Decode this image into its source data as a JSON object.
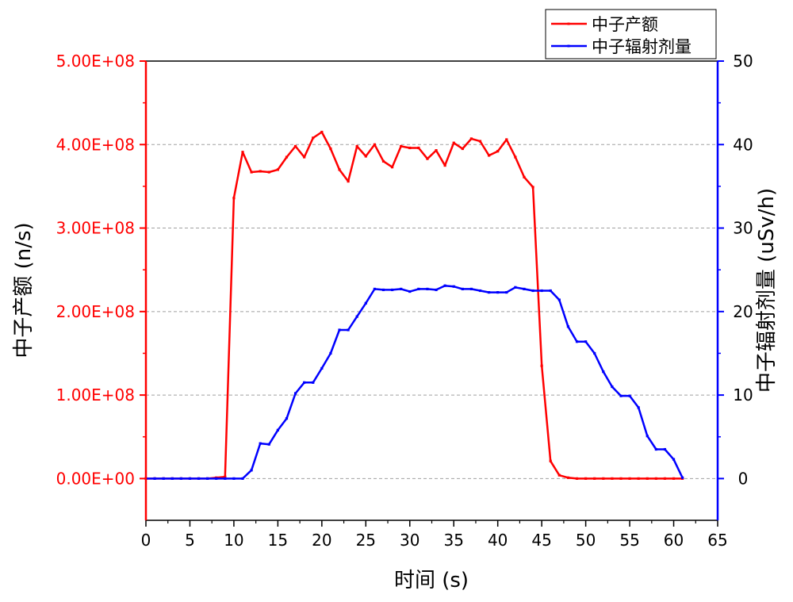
{
  "colors": {
    "left": "#ff0000",
    "right": "#0000ff",
    "axis": "#000000",
    "grid": "#a0a0a0"
  },
  "chart_data": {
    "type": "line",
    "xlabel": "时间 (s)",
    "ylabel_left": "中子产额 (n/s)",
    "ylabel_right": "中子辐射剂量 (uSv/h)",
    "xlim": [
      0,
      65
    ],
    "ylim_left": [
      -50000000,
      500000000
    ],
    "ylim_right": [
      -5,
      50
    ],
    "x_ticks": [
      "0",
      "5",
      "10",
      "15",
      "20",
      "25",
      "30",
      "35",
      "40",
      "45",
      "50",
      "55",
      "60",
      "65"
    ],
    "y_left_ticks": [
      "0.00E+00",
      "1.00E+08",
      "2.00E+08",
      "3.00E+08",
      "4.00E+08",
      "5.00E+08"
    ],
    "y_right_ticks": [
      "0",
      "10",
      "20",
      "30",
      "40",
      "50"
    ],
    "grid": "horizontal dashed",
    "legend_position": "top-right, outside plot",
    "series": [
      {
        "name": "中子产额",
        "axis": "left",
        "color": "#ff0000",
        "x": [
          0,
          1,
          2,
          3,
          4,
          5,
          6,
          7,
          8,
          9,
          10,
          11,
          12,
          13,
          14,
          15,
          16,
          17,
          18,
          19,
          20,
          21,
          22,
          23,
          24,
          25,
          26,
          27,
          28,
          29,
          30,
          31,
          32,
          33,
          34,
          35,
          36,
          37,
          38,
          39,
          40,
          41,
          42,
          43,
          44,
          45,
          46,
          47,
          48,
          49,
          50,
          51,
          52,
          53,
          54,
          55,
          56,
          57,
          58,
          59,
          60,
          61
        ],
        "values": [
          0,
          0,
          0,
          0,
          0,
          0,
          0,
          0,
          1000000,
          2000000,
          336000000,
          391000000,
          367000000,
          368000000,
          367000000,
          370000000,
          385000000,
          398000000,
          385000000,
          408000000,
          415000000,
          395000000,
          370000000,
          356000000,
          398000000,
          386000000,
          400000000,
          380000000,
          373000000,
          398000000,
          396000000,
          396000000,
          383000000,
          393000000,
          375000000,
          402000000,
          395000000,
          407000000,
          404000000,
          387000000,
          392000000,
          406000000,
          385000000,
          361000000,
          349000000,
          135000000,
          21000000,
          4000000,
          1000000,
          0,
          0,
          0,
          0,
          0,
          0,
          0,
          0,
          0,
          0,
          0,
          0,
          0
        ]
      },
      {
        "name": "中子辐射剂量",
        "axis": "right",
        "color": "#0000ff",
        "x": [
          0,
          1,
          2,
          3,
          4,
          5,
          6,
          7,
          8,
          9,
          10,
          11,
          12,
          13,
          14,
          15,
          16,
          17,
          18,
          19,
          20,
          21,
          22,
          23,
          24,
          25,
          26,
          27,
          28,
          29,
          30,
          31,
          32,
          33,
          34,
          35,
          36,
          37,
          38,
          39,
          40,
          41,
          42,
          43,
          44,
          45,
          46,
          47,
          48,
          49,
          50,
          51,
          52,
          53,
          54,
          55,
          56,
          57,
          58,
          59,
          60,
          61
        ],
        "values": [
          0,
          0,
          0,
          0,
          0,
          0,
          0,
          0,
          0,
          0,
          0,
          0,
          1,
          4.2,
          4.1,
          5.8,
          7.2,
          10.2,
          11.5,
          11.5,
          13.2,
          15,
          17.8,
          17.8,
          19.4,
          21,
          22.7,
          22.6,
          22.6,
          22.7,
          22.4,
          22.7,
          22.7,
          22.6,
          23.1,
          23,
          22.7,
          22.7,
          22.5,
          22.3,
          22.3,
          22.3,
          22.9,
          22.7,
          22.5,
          22.5,
          22.5,
          21.4,
          18.2,
          16.4,
          16.4,
          15,
          12.8,
          11,
          9.9,
          9.9,
          8.5,
          5.1,
          3.5,
          3.5,
          2.3,
          0.1
        ]
      }
    ]
  }
}
